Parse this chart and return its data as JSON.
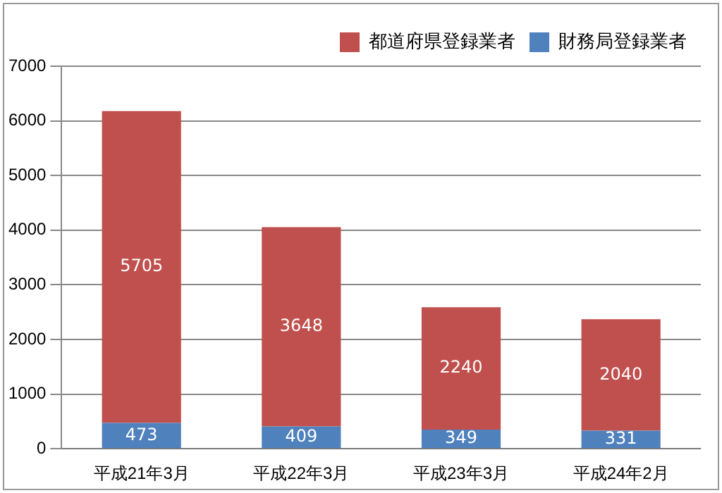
{
  "chart_data": {
    "type": "bar",
    "stacked": true,
    "categories": [
      "平成21年3月",
      "平成22年3月",
      "平成23年3月",
      "平成24年2月"
    ],
    "series": [
      {
        "name": "財務局登録業者",
        "color": "#4f81bd",
        "values": [
          473,
          409,
          349,
          331
        ]
      },
      {
        "name": "都道府県登録業者",
        "color": "#c0504d",
        "values": [
          5705,
          3648,
          2240,
          2040
        ]
      }
    ],
    "ylim": [
      0,
      7000
    ],
    "yticks": [
      0,
      1000,
      2000,
      3000,
      4000,
      5000,
      6000,
      7000
    ],
    "grid": "y",
    "legend": "top right",
    "data_labels": true
  }
}
